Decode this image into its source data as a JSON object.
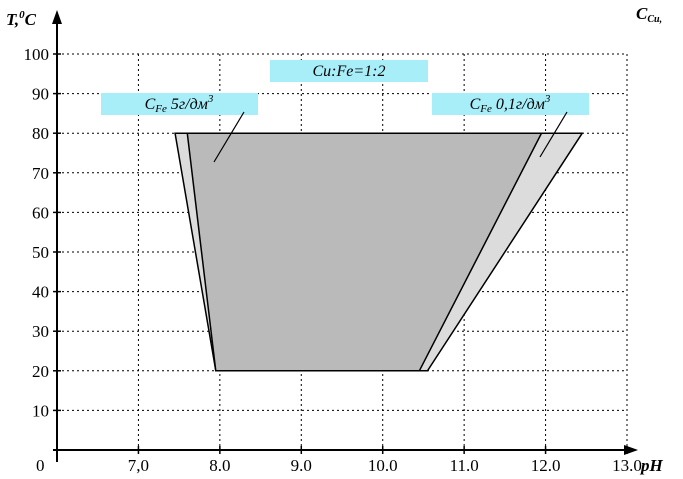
{
  "chart_data": {
    "type": "area",
    "title": "",
    "xlabel": "pH",
    "ylabel_main": "T,",
    "ylabel_sup": "0",
    "ylabel_tail": "C",
    "corner_label_main": "C",
    "corner_label_sub": "Cu,",
    "origin_label": "0",
    "xlim": [
      6.0,
      13.3
    ],
    "ylim": [
      0,
      100
    ],
    "x_ticks": [
      {
        "value": 7.0,
        "label": "7,0"
      },
      {
        "value": 8.0,
        "label": "8.0"
      },
      {
        "value": 9.0,
        "label": "9.0"
      },
      {
        "value": 10.0,
        "label": "10.0"
      },
      {
        "value": 11.0,
        "label": "11.0"
      },
      {
        "value": 12.0,
        "label": "12.0"
      },
      {
        "value": 13.0,
        "label": "13.0"
      }
    ],
    "y_ticks": [
      {
        "value": 10,
        "label": "10"
      },
      {
        "value": 20,
        "label": "20"
      },
      {
        "value": 30,
        "label": "30"
      },
      {
        "value": 40,
        "label": "40"
      },
      {
        "value": 50,
        "label": "50"
      },
      {
        "value": 60,
        "label": "60"
      },
      {
        "value": 70,
        "label": "70"
      },
      {
        "value": 80,
        "label": "80"
      },
      {
        "value": 90,
        "label": "90"
      },
      {
        "value": 100,
        "label": "100"
      }
    ],
    "grid": true,
    "series": [
      {
        "label_main": "C",
        "label_sub": "Fe",
        "label_rest": " 0,1г/дм",
        "label_sup": "3",
        "color": "#dcdcdc",
        "polygon": [
          [
            7.45,
            80
          ],
          [
            12.45,
            80
          ],
          [
            10.55,
            20
          ],
          [
            7.95,
            20
          ]
        ]
      },
      {
        "label_main": "C",
        "label_sub": "Fe",
        "label_rest": " 5г/дм",
        "label_sup": "3",
        "color": "#bababa",
        "polygon": [
          [
            7.6,
            80
          ],
          [
            11.95,
            80
          ],
          [
            10.45,
            20
          ],
          [
            7.95,
            20
          ]
        ]
      }
    ],
    "annotation_ratio": "Cu:Fe=1:2",
    "label_box_color": "#a8eef8"
  }
}
